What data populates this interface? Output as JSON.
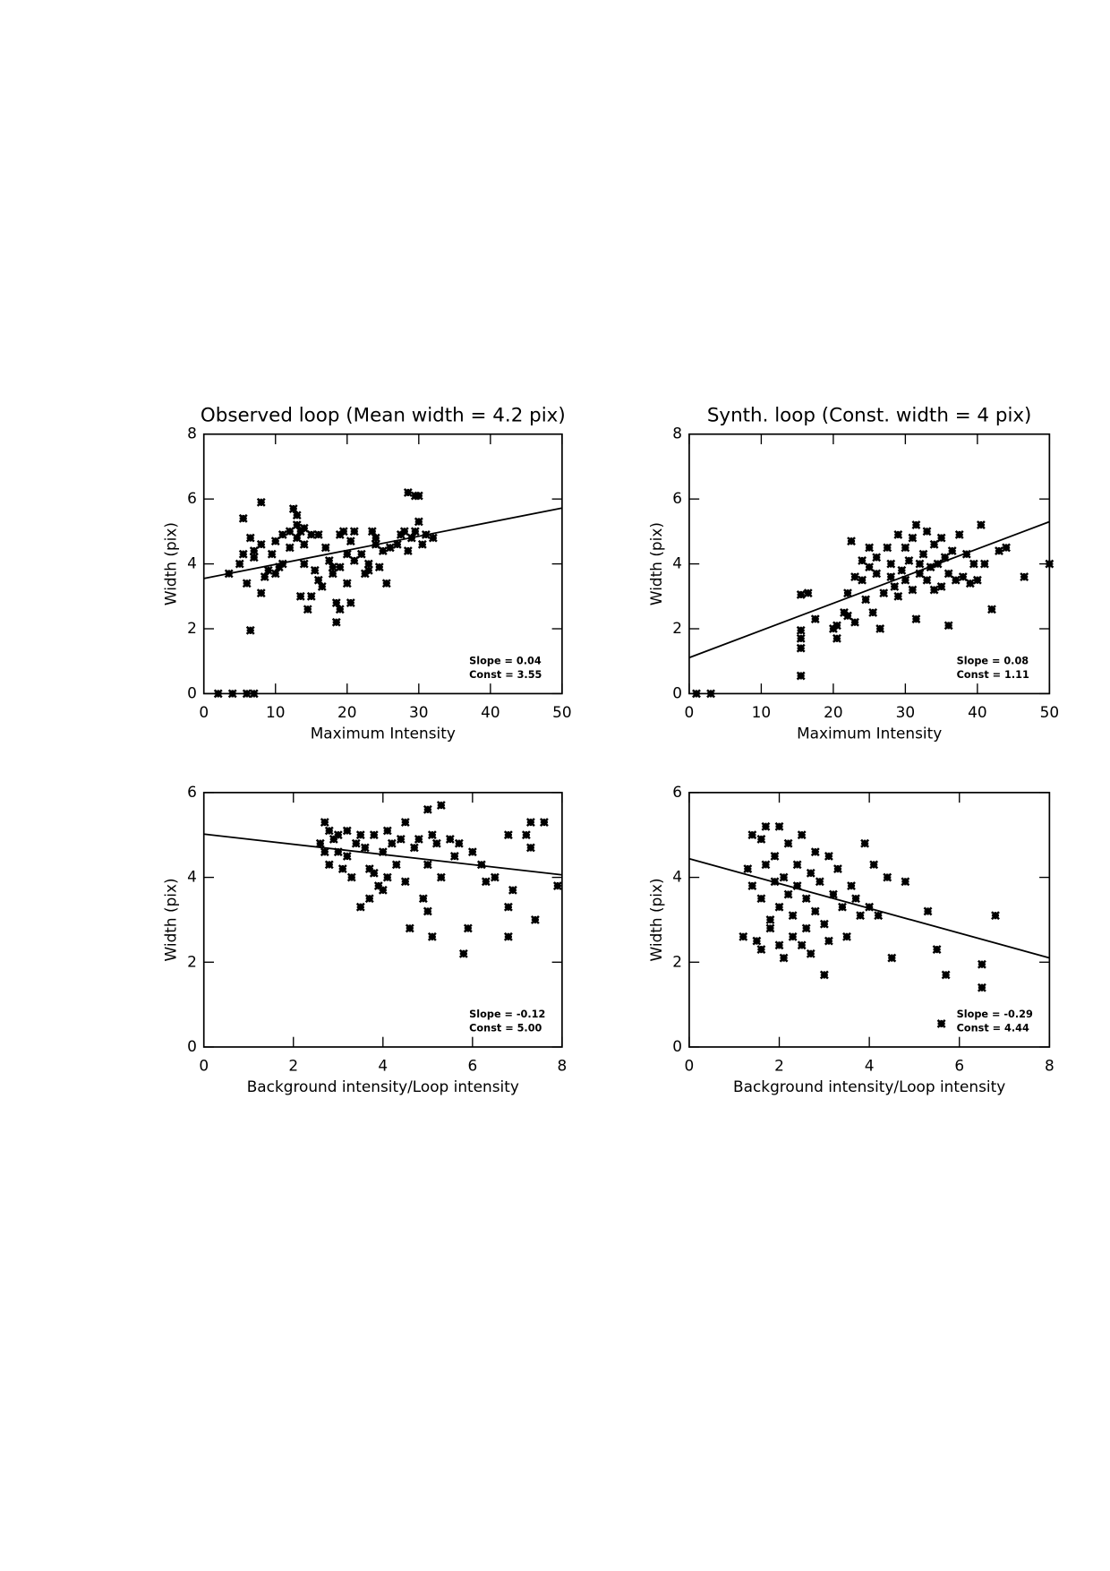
{
  "chart_data": [
    {
      "type": "scatter",
      "title": "Observed loop (Mean width = 4.2 pix)",
      "xlabel": "Maximum Intensity",
      "ylabel": "Width (pix)",
      "xlim": [
        0,
        50
      ],
      "ylim": [
        0,
        8
      ],
      "xticks": [
        0,
        10,
        20,
        30,
        40,
        50
      ],
      "yticks": [
        0,
        2,
        4,
        6,
        8
      ],
      "annotations": [
        "Slope = 0.04",
        "Const = 3.55"
      ],
      "color": "#000000",
      "points": {
        "x": [
          2,
          4,
          6,
          7,
          3.5,
          5,
          5.5,
          5.5,
          6,
          6.5,
          6.5,
          7,
          7,
          8,
          8,
          8,
          8.5,
          9,
          9.5,
          10,
          10,
          10.5,
          11,
          11,
          12,
          12,
          12.5,
          13,
          13,
          13,
          13.5,
          13.5,
          14,
          14,
          14,
          14.5,
          15,
          15,
          15.5,
          16,
          16,
          16.5,
          17,
          17.5,
          18,
          18,
          18.5,
          18.5,
          19,
          19,
          19,
          19.5,
          20,
          20,
          20.5,
          20.5,
          21,
          21,
          22,
          22.5,
          23,
          23,
          23.5,
          24,
          24,
          24.5,
          25,
          25.5,
          26,
          27,
          27.5,
          28,
          28.5,
          28.5,
          29,
          29.5,
          29.5,
          30,
          30,
          30.5,
          31,
          32
        ],
        "y": [
          0,
          0,
          0,
          0,
          3.7,
          4.0,
          4.3,
          5.4,
          3.4,
          4.8,
          1.95,
          4.2,
          4.4,
          3.1,
          4.6,
          5.9,
          3.6,
          3.8,
          4.3,
          4.7,
          3.7,
          3.9,
          4.9,
          4.0,
          4.5,
          5.0,
          5.7,
          4.8,
          5.2,
          5.5,
          5.0,
          3.0,
          4.6,
          4.0,
          5.1,
          2.6,
          4.9,
          3.0,
          3.8,
          3.5,
          4.9,
          3.3,
          4.5,
          4.1,
          3.9,
          3.7,
          2.8,
          2.2,
          4.9,
          3.9,
          2.6,
          5.0,
          4.3,
          3.4,
          4.7,
          2.8,
          4.1,
          5.0,
          4.3,
          3.7,
          4.0,
          3.8,
          5.0,
          4.6,
          4.8,
          3.9,
          4.4,
          3.4,
          4.5,
          4.6,
          4.9,
          5.0,
          4.4,
          6.2,
          4.8,
          6.1,
          5.0,
          6.1,
          5.3,
          4.6,
          4.9,
          4.8
        ]
      },
      "fit": {
        "x": [
          0,
          50
        ],
        "y": [
          3.55,
          5.72
        ]
      }
    },
    {
      "type": "scatter",
      "title": "Synth. loop (Const. width = 4 pix)",
      "xlabel": "Maximum Intensity",
      "ylabel": "Width (pix)",
      "xlim": [
        0,
        50
      ],
      "ylim": [
        0,
        8
      ],
      "xticks": [
        0,
        10,
        20,
        30,
        40,
        50
      ],
      "yticks": [
        0,
        2,
        4,
        6,
        8
      ],
      "annotations": [
        "Slope = 0.08",
        "Const = 1.11"
      ],
      "color": "#000000",
      "points": {
        "x": [
          1,
          3,
          15.5,
          15.5,
          15.5,
          15.5,
          15.5,
          16.5,
          17.5,
          20,
          20.5,
          20.5,
          21.5,
          22,
          22,
          22.5,
          23,
          23,
          24,
          24,
          24.5,
          25,
          25,
          25.5,
          26,
          26,
          26.5,
          27,
          27.5,
          28,
          28,
          28.5,
          29,
          29,
          29.5,
          30,
          30,
          30.5,
          31,
          31,
          31.5,
          31.5,
          32,
          32,
          32.5,
          33,
          33,
          33.5,
          34,
          34,
          34.5,
          35,
          35,
          35.5,
          36,
          36,
          36.5,
          37,
          37.5,
          38,
          38.5,
          39,
          39.5,
          40,
          40.5,
          41,
          42,
          43,
          44,
          46.5,
          50
        ],
        "y": [
          0,
          0,
          0.55,
          1.4,
          1.7,
          1.95,
          3.05,
          3.1,
          2.3,
          2.0,
          1.7,
          2.1,
          2.5,
          3.1,
          2.4,
          4.7,
          2.2,
          3.6,
          3.5,
          4.1,
          2.9,
          3.9,
          4.5,
          2.5,
          3.7,
          4.2,
          2.0,
          3.1,
          4.5,
          3.6,
          4.0,
          3.3,
          3.0,
          4.9,
          3.8,
          4.5,
          3.5,
          4.1,
          4.8,
          3.2,
          2.3,
          5.2,
          4.0,
          3.7,
          4.3,
          3.5,
          5.0,
          3.9,
          4.6,
          3.2,
          4.0,
          4.8,
          3.3,
          4.2,
          3.7,
          2.1,
          4.4,
          3.5,
          4.9,
          3.6,
          4.3,
          3.4,
          4.0,
          3.5,
          5.2,
          4.0,
          2.6,
          4.4,
          4.5,
          3.6,
          4.0
        ]
      },
      "fit": {
        "x": [
          0,
          50
        ],
        "y": [
          1.11,
          5.3
        ]
      }
    },
    {
      "type": "scatter",
      "xlabel": "Background intensity/Loop intensity",
      "ylabel": "Width (pix)",
      "xlim": [
        0,
        8
      ],
      "ylim": [
        0,
        6
      ],
      "xticks": [
        0,
        2,
        4,
        6,
        8
      ],
      "yticks": [
        0,
        2,
        4,
        6
      ],
      "annotations": [
        "Slope = -0.12",
        "Const = 5.00"
      ],
      "color": "#000000",
      "points": {
        "x": [
          2.6,
          2.7,
          2.7,
          2.8,
          2.8,
          2.9,
          3.0,
          3.0,
          3.1,
          3.2,
          3.2,
          3.3,
          3.4,
          3.5,
          3.5,
          3.6,
          3.7,
          3.7,
          3.8,
          3.8,
          3.9,
          4.0,
          4.0,
          4.1,
          4.1,
          4.2,
          4.3,
          4.4,
          4.5,
          4.5,
          4.6,
          4.7,
          4.8,
          4.9,
          5.0,
          5.0,
          5.0,
          5.1,
          5.1,
          5.2,
          5.3,
          5.3,
          5.5,
          5.6,
          5.7,
          5.8,
          5.9,
          6.0,
          6.2,
          6.3,
          6.5,
          6.8,
          6.8,
          6.8,
          6.9,
          7.2,
          7.3,
          7.3,
          7.4,
          7.6,
          7.9
        ],
        "y": [
          4.8,
          5.3,
          4.6,
          5.1,
          4.3,
          4.9,
          5.0,
          4.6,
          4.2,
          5.1,
          4.5,
          4.0,
          4.8,
          3.3,
          5.0,
          4.7,
          4.2,
          3.5,
          5.0,
          4.1,
          3.8,
          4.6,
          3.7,
          5.1,
          4.0,
          4.8,
          4.3,
          4.9,
          3.9,
          5.3,
          2.8,
          4.7,
          4.9,
          3.5,
          5.6,
          4.3,
          3.2,
          2.6,
          5.0,
          4.8,
          4.0,
          5.7,
          4.9,
          4.5,
          4.8,
          2.2,
          2.8,
          4.6,
          4.3,
          3.9,
          4.0,
          5.0,
          3.3,
          2.6,
          3.7,
          5.0,
          4.7,
          5.3,
          3.0,
          5.3,
          3.8
        ]
      },
      "fit": {
        "x": [
          0,
          8
        ],
        "y": [
          5.02,
          4.06
        ]
      }
    },
    {
      "type": "scatter",
      "xlabel": "Background intensity/Loop intensity",
      "ylabel": "Width (pix)",
      "xlim": [
        0,
        8
      ],
      "ylim": [
        0,
        6
      ],
      "xticks": [
        0,
        2,
        4,
        6,
        8
      ],
      "yticks": [
        0,
        2,
        4,
        6
      ],
      "annotations": [
        "Slope = -0.29",
        "Const = 4.44"
      ],
      "color": "#000000",
      "points": {
        "x": [
          1.2,
          1.3,
          1.4,
          1.4,
          1.5,
          1.6,
          1.6,
          1.6,
          1.7,
          1.7,
          1.8,
          1.8,
          1.9,
          1.9,
          2.0,
          2.0,
          2.0,
          2.1,
          2.1,
          2.2,
          2.2,
          2.3,
          2.3,
          2.4,
          2.4,
          2.5,
          2.5,
          2.6,
          2.6,
          2.7,
          2.7,
          2.8,
          2.8,
          2.9,
          3.0,
          3.0,
          3.1,
          3.1,
          3.2,
          3.3,
          3.4,
          3.5,
          3.6,
          3.7,
          3.8,
          3.9,
          4.0,
          4.1,
          4.2,
          4.4,
          4.5,
          4.8,
          5.3,
          5.5,
          5.7,
          5.6,
          6.5,
          6.5,
          6.8
        ],
        "y": [
          2.6,
          4.2,
          3.8,
          5.0,
          2.5,
          4.9,
          2.3,
          3.5,
          5.2,
          4.3,
          3.0,
          2.8,
          4.5,
          3.9,
          3.3,
          5.2,
          2.4,
          2.1,
          4.0,
          3.6,
          4.8,
          3.1,
          2.6,
          4.3,
          3.8,
          2.4,
          5.0,
          3.5,
          2.8,
          4.1,
          2.2,
          3.2,
          4.6,
          3.9,
          2.9,
          1.7,
          4.5,
          2.5,
          3.6,
          4.2,
          3.3,
          2.6,
          3.8,
          3.5,
          3.1,
          4.8,
          3.3,
          4.3,
          3.1,
          4.0,
          2.1,
          3.9,
          3.2,
          2.3,
          1.7,
          0.55,
          1.95,
          1.4,
          3.1
        ]
      },
      "fit": {
        "x": [
          0,
          8
        ],
        "y": [
          4.44,
          2.1
        ]
      }
    }
  ]
}
